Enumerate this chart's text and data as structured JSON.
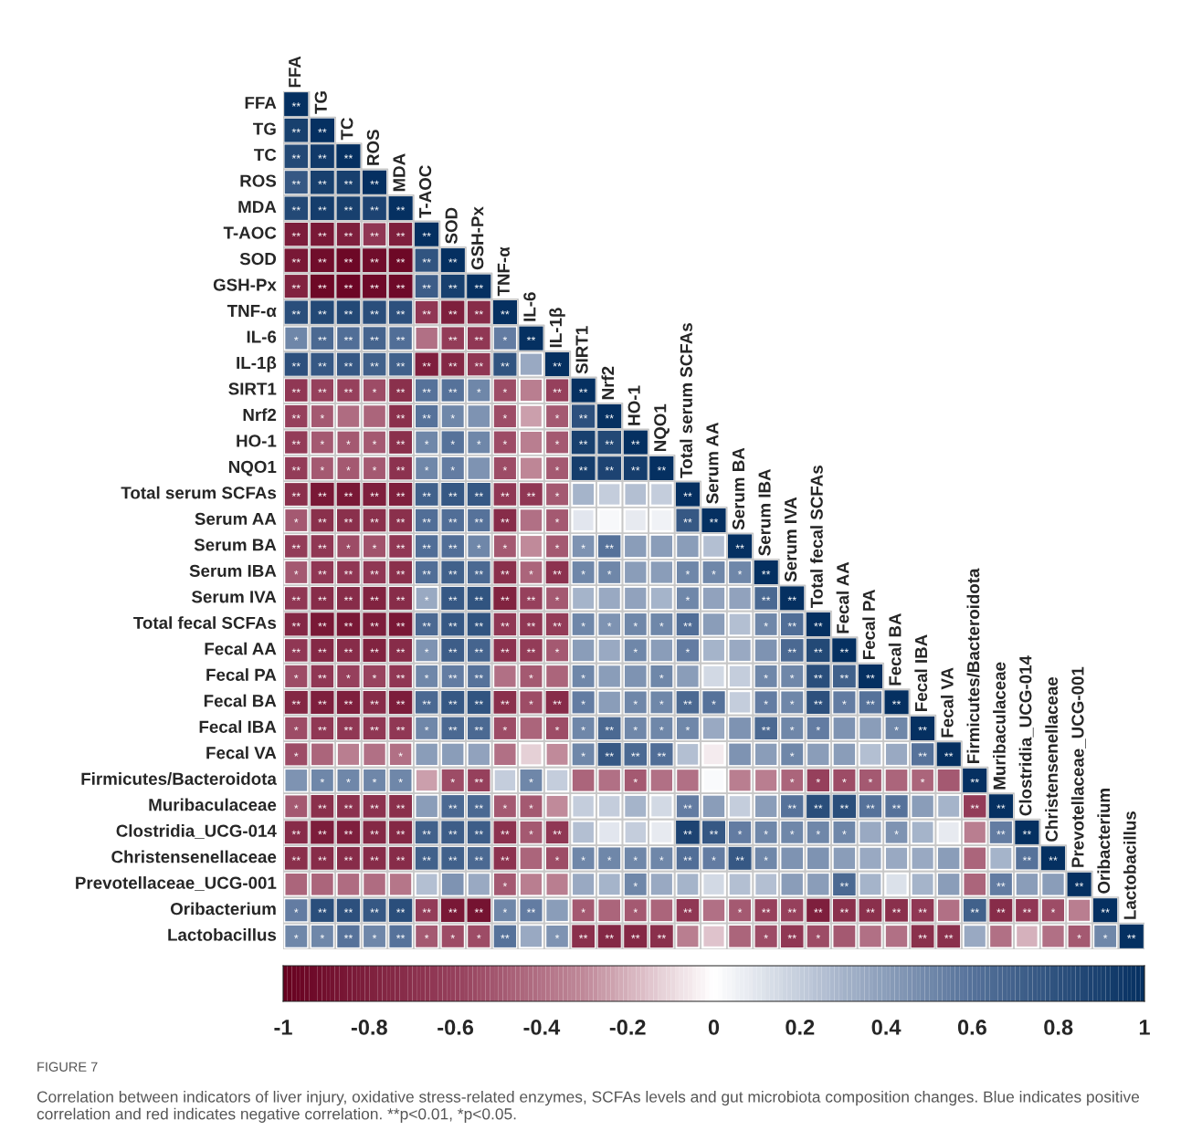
{
  "chart_data": {
    "type": "heatmap",
    "categories": [
      "FFA",
      "TG",
      "TC",
      "ROS",
      "MDA",
      "T-AOC",
      "SOD",
      "GSH-Px",
      "TNF-α",
      "IL-6",
      "IL-1β",
      "SIRT1",
      "Nrf2",
      "HO-1",
      "NQO1",
      "Total serum SCFAs",
      "Serum AA",
      "Serum BA",
      "Serum IBA",
      "Serum IVA",
      "Total fecal SCFAs",
      "Fecal AA",
      "Fecal PA",
      "Fecal BA",
      "Fecal IBA",
      "Fecal VA",
      "Firmicutes/Bacteroidota",
      "Muribaculaceae",
      "Clostridia_UCG-014",
      "Christensenellaceae",
      "Prevotellaceae_UCG-001",
      "Oribacterium",
      "Lactobacillus"
    ],
    "y_categories": [
      "FFA",
      "TG",
      "TC",
      "ROS",
      "MDA",
      "T-AOC",
      "SOD",
      "GSH-Px",
      "TNF-α",
      "IL-6",
      "IL-1β",
      "SIRT1",
      "Nrf2",
      "HO-1",
      "NQO1",
      "Total serum SCFAs",
      "Serum AA",
      "Serum BA",
      "Serum IBA",
      "Serum IVA",
      "Total fecal SCFAs",
      "Fecal AA",
      "Fecal PA",
      "Fecal BA",
      "Fecal IBA",
      "Fecal VA",
      "Firmicutes/Bacteroidota",
      "Muribaculaceae",
      "Clostridia_UCG-014",
      "Christensenellaceae",
      "Prevotellaceae_UCG-001",
      "Oribacterium",
      "Lactobacillus"
    ],
    "cells": [
      [
        1,
        null,
        null,
        null,
        null,
        null,
        null,
        null,
        null,
        null,
        null,
        null,
        null,
        null,
        null,
        null,
        null,
        null,
        null,
        null,
        null,
        null,
        null,
        null,
        null,
        null,
        null,
        null,
        null,
        null,
        null,
        null,
        null
      ],
      [
        0.9,
        1,
        null,
        null,
        null,
        null,
        null,
        null,
        null,
        null,
        null,
        null,
        null,
        null,
        null,
        null,
        null,
        null,
        null,
        null,
        null,
        null,
        null,
        null,
        null,
        null,
        null,
        null,
        null,
        null,
        null,
        null,
        null
      ],
      [
        0.85,
        0.93,
        1,
        null,
        null,
        null,
        null,
        null,
        null,
        null,
        null,
        null,
        null,
        null,
        null,
        null,
        null,
        null,
        null,
        null,
        null,
        null,
        null,
        null,
        null,
        null,
        null,
        null,
        null,
        null,
        null,
        null,
        null
      ],
      [
        0.75,
        0.9,
        0.9,
        1,
        null,
        null,
        null,
        null,
        null,
        null,
        null,
        null,
        null,
        null,
        null,
        null,
        null,
        null,
        null,
        null,
        null,
        null,
        null,
        null,
        null,
        null,
        null,
        null,
        null,
        null,
        null,
        null,
        null
      ],
      [
        0.85,
        0.92,
        0.9,
        0.88,
        1,
        null,
        null,
        null,
        null,
        null,
        null,
        null,
        null,
        null,
        null,
        null,
        null,
        null,
        null,
        null,
        null,
        null,
        null,
        null,
        null,
        null,
        null,
        null,
        null,
        null,
        null,
        null,
        null
      ],
      [
        -0.82,
        -0.85,
        -0.8,
        -0.65,
        -0.8,
        1,
        null,
        null,
        null,
        null,
        null,
        null,
        null,
        null,
        null,
        null,
        null,
        null,
        null,
        null,
        null,
        null,
        null,
        null,
        null,
        null,
        null,
        null,
        null,
        null,
        null,
        null,
        null
      ],
      [
        -0.85,
        -0.92,
        -0.95,
        -0.92,
        -0.95,
        0.78,
        1,
        null,
        null,
        null,
        null,
        null,
        null,
        null,
        null,
        null,
        null,
        null,
        null,
        null,
        null,
        null,
        null,
        null,
        null,
        null,
        null,
        null,
        null,
        null,
        null,
        null,
        null
      ],
      [
        -0.78,
        -0.95,
        -0.96,
        -0.93,
        -0.93,
        0.72,
        0.9,
        1,
        null,
        null,
        null,
        null,
        null,
        null,
        null,
        null,
        null,
        null,
        null,
        null,
        null,
        null,
        null,
        null,
        null,
        null,
        null,
        null,
        null,
        null,
        null,
        null,
        null
      ],
      [
        0.82,
        0.85,
        0.85,
        0.82,
        0.8,
        -0.65,
        -0.8,
        -0.72,
        1,
        null,
        null,
        null,
        null,
        null,
        null,
        null,
        null,
        null,
        null,
        null,
        null,
        null,
        null,
        null,
        null,
        null,
        null,
        null,
        null,
        null,
        null,
        null,
        null
      ],
      [
        0.5,
        0.65,
        0.62,
        0.68,
        0.62,
        -0.4,
        -0.62,
        -0.65,
        0.55,
        1,
        null,
        null,
        null,
        null,
        null,
        null,
        null,
        null,
        null,
        null,
        null,
        null,
        null,
        null,
        null,
        null,
        null,
        null,
        null,
        null,
        null,
        null,
        null
      ],
      [
        0.8,
        0.75,
        0.75,
        0.7,
        0.7,
        -0.8,
        -0.75,
        -0.65,
        0.78,
        0.35,
        1,
        null,
        null,
        null,
        null,
        null,
        null,
        null,
        null,
        null,
        null,
        null,
        null,
        null,
        null,
        null,
        null,
        null,
        null,
        null,
        null,
        null,
        null
      ],
      [
        -0.65,
        -0.6,
        -0.6,
        -0.55,
        -0.7,
        0.6,
        0.6,
        0.5,
        -0.55,
        -0.35,
        -0.6,
        1,
        null,
        null,
        null,
        null,
        null,
        null,
        null,
        null,
        null,
        null,
        null,
        null,
        null,
        null,
        null,
        null,
        null,
        null,
        null,
        null,
        null
      ],
      [
        -0.6,
        -0.5,
        -0.42,
        -0.45,
        -0.7,
        0.6,
        0.5,
        0.45,
        -0.55,
        -0.25,
        -0.5,
        0.8,
        1,
        null,
        null,
        null,
        null,
        null,
        null,
        null,
        null,
        null,
        null,
        null,
        null,
        null,
        null,
        null,
        null,
        null,
        null,
        null,
        null
      ],
      [
        -0.62,
        -0.5,
        -0.5,
        -0.5,
        -0.7,
        0.5,
        0.6,
        0.5,
        -0.55,
        -0.35,
        -0.5,
        0.9,
        0.85,
        1,
        null,
        null,
        null,
        null,
        null,
        null,
        null,
        null,
        null,
        null,
        null,
        null,
        null,
        null,
        null,
        null,
        null,
        null,
        null
      ],
      [
        -0.62,
        -0.5,
        -0.5,
        -0.5,
        -0.68,
        0.5,
        0.55,
        0.45,
        -0.55,
        -0.32,
        -0.5,
        0.92,
        0.88,
        0.92,
        1,
        null,
        null,
        null,
        null,
        null,
        null,
        null,
        null,
        null,
        null,
        null,
        null,
        null,
        null,
        null,
        null,
        null,
        null
      ],
      [
        -0.7,
        -0.85,
        -0.85,
        -0.8,
        -0.8,
        0.7,
        0.75,
        0.75,
        -0.65,
        -0.65,
        -0.5,
        0.3,
        0.2,
        0.25,
        0.2,
        1,
        null,
        null,
        null,
        null,
        null,
        null,
        null,
        null,
        null,
        null,
        null,
        null,
        null,
        null,
        null,
        null,
        null
      ],
      [
        -0.5,
        -0.7,
        -0.7,
        -0.7,
        -0.7,
        0.62,
        0.62,
        0.6,
        -0.72,
        -0.4,
        -0.5,
        0.1,
        0.03,
        0.08,
        0.05,
        0.75,
        1,
        null,
        null,
        null,
        null,
        null,
        null,
        null,
        null,
        null,
        null,
        null,
        null,
        null,
        null,
        null,
        null
      ],
      [
        -0.62,
        -0.65,
        -0.55,
        -0.52,
        -0.65,
        0.62,
        0.62,
        0.5,
        -0.5,
        -0.3,
        -0.5,
        0.45,
        0.6,
        0.4,
        0.4,
        0.4,
        0.25,
        1,
        null,
        null,
        null,
        null,
        null,
        null,
        null,
        null,
        null,
        null,
        null,
        null,
        null,
        null,
        null
      ],
      [
        -0.5,
        -0.65,
        -0.65,
        -0.65,
        -0.7,
        0.62,
        0.7,
        0.65,
        -0.7,
        -0.45,
        -0.68,
        0.5,
        0.5,
        0.4,
        0.4,
        0.5,
        0.5,
        0.5,
        1,
        null,
        null,
        null,
        null,
        null,
        null,
        null,
        null,
        null,
        null,
        null,
        null,
        null,
        null
      ],
      [
        -0.65,
        -0.72,
        -0.72,
        -0.78,
        -0.72,
        0.35,
        0.75,
        0.78,
        -0.78,
        -0.6,
        -0.5,
        0.3,
        0.35,
        0.38,
        0.3,
        0.5,
        0.38,
        0.38,
        0.65,
        1,
        null,
        null,
        null,
        null,
        null,
        null,
        null,
        null,
        null,
        null,
        null,
        null,
        null
      ],
      [
        -0.75,
        -0.85,
        -0.85,
        -0.82,
        -0.85,
        0.65,
        0.75,
        0.78,
        -0.65,
        -0.65,
        -0.62,
        0.5,
        0.45,
        0.5,
        0.5,
        0.62,
        0.4,
        0.25,
        0.5,
        0.62,
        1,
        null,
        null,
        null,
        null,
        null,
        null,
        null,
        null,
        null,
        null,
        null,
        null
      ],
      [
        -0.65,
        -0.75,
        -0.72,
        -0.78,
        -0.72,
        0.45,
        0.72,
        0.68,
        -0.68,
        -0.62,
        -0.5,
        0.4,
        0.35,
        0.5,
        0.4,
        0.55,
        0.3,
        0.35,
        0.45,
        0.65,
        0.85,
        1,
        null,
        null,
        null,
        null,
        null,
        null,
        null,
        null,
        null,
        null,
        null
      ],
      [
        -0.55,
        -0.65,
        -0.6,
        -0.58,
        -0.65,
        0.5,
        0.55,
        0.6,
        -0.4,
        -0.5,
        -0.45,
        0.5,
        0.4,
        0.45,
        0.5,
        0.4,
        0.15,
        0.2,
        0.5,
        0.5,
        0.82,
        0.7,
        1,
        null,
        null,
        null,
        null,
        null,
        null,
        null,
        null,
        null,
        null
      ],
      [
        -0.75,
        -0.8,
        -0.8,
        -0.72,
        -0.82,
        0.65,
        0.75,
        0.78,
        -0.7,
        -0.55,
        -0.72,
        0.55,
        0.4,
        0.5,
        0.5,
        0.65,
        0.6,
        0.2,
        0.55,
        0.5,
        0.8,
        0.55,
        0.6,
        1,
        null,
        null,
        null,
        null,
        null,
        null,
        null,
        null,
        null
      ],
      [
        -0.55,
        -0.65,
        -0.65,
        -0.65,
        -0.65,
        0.5,
        0.65,
        0.65,
        -0.55,
        -0.45,
        -0.55,
        0.5,
        0.65,
        0.5,
        0.5,
        0.5,
        0.35,
        0.45,
        0.65,
        0.5,
        0.55,
        0.45,
        0.4,
        0.5,
        1,
        null,
        null,
        null,
        null,
        null,
        null,
        null,
        null
      ],
      [
        -0.55,
        -0.45,
        -0.35,
        -0.4,
        -0.4,
        0.4,
        0.4,
        0.38,
        -0.4,
        -0.12,
        -0.3,
        0.5,
        0.75,
        0.65,
        0.62,
        0.25,
        -0.05,
        0.45,
        0.4,
        0.5,
        0.4,
        0.4,
        0.25,
        0.35,
        0.6,
        1,
        null,
        null,
        null,
        null,
        null,
        null,
        null
      ],
      [
        0.45,
        0.5,
        0.5,
        0.5,
        0.5,
        -0.25,
        -0.55,
        -0.6,
        0.2,
        0.5,
        0.2,
        -0.45,
        -0.4,
        -0.5,
        -0.4,
        -0.4,
        0.02,
        -0.35,
        -0.35,
        -0.45,
        -0.6,
        -0.55,
        -0.5,
        -0.45,
        -0.45,
        -0.5,
        1,
        null,
        null,
        null,
        null,
        null,
        null
      ],
      [
        -0.5,
        -0.7,
        -0.68,
        -0.68,
        -0.7,
        0.4,
        0.65,
        0.65,
        -0.5,
        -0.5,
        -0.3,
        0.2,
        0.2,
        0.3,
        0.15,
        0.55,
        0.4,
        0.2,
        0.4,
        0.6,
        0.82,
        0.82,
        0.6,
        0.6,
        0.4,
        0.3,
        -0.62,
        1,
        null,
        null,
        null,
        null,
        null
      ],
      [
        -0.72,
        -0.82,
        -0.8,
        -0.75,
        -0.75,
        0.7,
        0.72,
        0.72,
        -0.68,
        -0.5,
        -0.65,
        0.25,
        0.1,
        0.2,
        0.08,
        0.88,
        0.75,
        0.55,
        0.5,
        0.5,
        0.5,
        0.5,
        0.35,
        0.45,
        0.3,
        0.08,
        -0.35,
        0.55,
        1,
        null,
        null,
        null,
        null
      ],
      [
        -0.7,
        -0.72,
        -0.72,
        -0.72,
        -0.72,
        0.7,
        0.7,
        0.65,
        -0.68,
        -0.45,
        -0.55,
        0.5,
        0.5,
        0.5,
        0.5,
        0.62,
        0.55,
        0.75,
        0.5,
        0.45,
        0.45,
        0.4,
        0.35,
        0.35,
        0.35,
        0.4,
        -0.45,
        0.3,
        0.6,
        1,
        null,
        null,
        null
      ],
      [
        -0.45,
        -0.45,
        -0.42,
        -0.42,
        -0.38,
        0.25,
        0.45,
        0.35,
        -0.5,
        -0.35,
        -0.35,
        0.35,
        0.3,
        0.5,
        0.35,
        0.3,
        0.15,
        0.25,
        0.25,
        0.4,
        0.4,
        0.65,
        0.3,
        0.12,
        0.3,
        0.4,
        -0.45,
        0.55,
        0.4,
        0.4,
        1,
        null,
        null
      ],
      [
        0.55,
        0.82,
        0.8,
        0.75,
        0.82,
        -0.62,
        -0.85,
        -0.88,
        0.5,
        0.55,
        0.4,
        -0.5,
        -0.45,
        -0.5,
        -0.45,
        -0.65,
        -0.4,
        -0.5,
        -0.6,
        -0.6,
        -0.8,
        -0.7,
        -0.7,
        -0.7,
        -0.65,
        -0.4,
        0.7,
        -0.72,
        -0.65,
        -0.55,
        -0.35,
        1,
        null
      ],
      [
        0.5,
        0.5,
        0.6,
        0.5,
        0.6,
        -0.5,
        -0.55,
        -0.55,
        0.6,
        0.35,
        0.45,
        -0.7,
        -0.75,
        -0.75,
        -0.7,
        -0.35,
        -0.15,
        -0.45,
        -0.55,
        -0.65,
        -0.55,
        -0.5,
        -0.4,
        -0.4,
        -0.7,
        -0.7,
        0.35,
        -0.4,
        -0.2,
        -0.4,
        -0.5,
        0.5,
        1
      ]
    ],
    "cell_labels": [
      [
        "**",
        null,
        null,
        null,
        null,
        null,
        null,
        null,
        null,
        null,
        null,
        null,
        null,
        null,
        null,
        null,
        null,
        null,
        null,
        null,
        null,
        null,
        null,
        null,
        null,
        null,
        null,
        null,
        null,
        null,
        null,
        null,
        null
      ],
      [
        "**",
        "**",
        null,
        null,
        null,
        null,
        null,
        null,
        null,
        null,
        null,
        null,
        null,
        null,
        null,
        null,
        null,
        null,
        null,
        null,
        null,
        null,
        null,
        null,
        null,
        null,
        null,
        null,
        null,
        null,
        null,
        null,
        null
      ],
      [
        "**",
        "**",
        "**",
        null,
        null,
        null,
        null,
        null,
        null,
        null,
        null,
        null,
        null,
        null,
        null,
        null,
        null,
        null,
        null,
        null,
        null,
        null,
        null,
        null,
        null,
        null,
        null,
        null,
        null,
        null,
        null,
        null,
        null
      ],
      [
        "**",
        "**",
        "**",
        "**",
        null,
        null,
        null,
        null,
        null,
        null,
        null,
        null,
        null,
        null,
        null,
        null,
        null,
        null,
        null,
        null,
        null,
        null,
        null,
        null,
        null,
        null,
        null,
        null,
        null,
        null,
        null,
        null,
        null
      ],
      [
        "**",
        "**",
        "**",
        "**",
        "**",
        null,
        null,
        null,
        null,
        null,
        null,
        null,
        null,
        null,
        null,
        null,
        null,
        null,
        null,
        null,
        null,
        null,
        null,
        null,
        null,
        null,
        null,
        null,
        null,
        null,
        null,
        null,
        null
      ],
      [
        "**",
        "**",
        "**",
        "**",
        "**",
        "**",
        null,
        null,
        null,
        null,
        null,
        null,
        null,
        null,
        null,
        null,
        null,
        null,
        null,
        null,
        null,
        null,
        null,
        null,
        null,
        null,
        null,
        null,
        null,
        null,
        null,
        null,
        null
      ],
      [
        "**",
        "**",
        "**",
        "**",
        "**",
        "**",
        "**",
        null,
        null,
        null,
        null,
        null,
        null,
        null,
        null,
        null,
        null,
        null,
        null,
        null,
        null,
        null,
        null,
        null,
        null,
        null,
        null,
        null,
        null,
        null,
        null,
        null,
        null
      ],
      [
        "**",
        "**",
        "**",
        "**",
        "**",
        "**",
        "**",
        "**",
        null,
        null,
        null,
        null,
        null,
        null,
        null,
        null,
        null,
        null,
        null,
        null,
        null,
        null,
        null,
        null,
        null,
        null,
        null,
        null,
        null,
        null,
        null,
        null,
        null
      ],
      [
        "**",
        "**",
        "**",
        "**",
        "**",
        "**",
        "**",
        "**",
        "**",
        null,
        null,
        null,
        null,
        null,
        null,
        null,
        null,
        null,
        null,
        null,
        null,
        null,
        null,
        null,
        null,
        null,
        null,
        null,
        null,
        null,
        null,
        null,
        null
      ],
      [
        "*",
        "**",
        "**",
        "**",
        "**",
        null,
        "**",
        "**",
        "*",
        "**",
        null,
        null,
        null,
        null,
        null,
        null,
        null,
        null,
        null,
        null,
        null,
        null,
        null,
        null,
        null,
        null,
        null,
        null,
        null,
        null,
        null,
        null,
        null
      ],
      [
        "**",
        "**",
        "**",
        "**",
        "**",
        "**",
        "**",
        "**",
        "**",
        null,
        "**",
        null,
        null,
        null,
        null,
        null,
        null,
        null,
        null,
        null,
        null,
        null,
        null,
        null,
        null,
        null,
        null,
        null,
        null,
        null,
        null,
        null,
        null
      ],
      [
        "**",
        "**",
        "**",
        "*",
        "**",
        "**",
        "**",
        "*",
        "*",
        null,
        "**",
        "**",
        null,
        null,
        null,
        null,
        null,
        null,
        null,
        null,
        null,
        null,
        null,
        null,
        null,
        null,
        null,
        null,
        null,
        null,
        null,
        null,
        null
      ],
      [
        "**",
        "*",
        null,
        null,
        "**",
        "**",
        "*",
        null,
        "*",
        null,
        "*",
        "**",
        "**",
        null,
        null,
        null,
        null,
        null,
        null,
        null,
        null,
        null,
        null,
        null,
        null,
        null,
        null,
        null,
        null,
        null,
        null,
        null,
        null
      ],
      [
        "**",
        "*",
        "*",
        "*",
        "**",
        "*",
        "*",
        "*",
        "*",
        null,
        "*",
        "**",
        "**",
        "**",
        null,
        null,
        null,
        null,
        null,
        null,
        null,
        null,
        null,
        null,
        null,
        null,
        null,
        null,
        null,
        null,
        null,
        null,
        null
      ],
      [
        "**",
        "*",
        "*",
        "*",
        "**",
        "*",
        "*",
        null,
        "*",
        null,
        "*",
        "**",
        "**",
        "**",
        "**",
        null,
        null,
        null,
        null,
        null,
        null,
        null,
        null,
        null,
        null,
        null,
        null,
        null,
        null,
        null,
        null,
        null,
        null
      ],
      [
        "**",
        "**",
        "**",
        "**",
        "**",
        "**",
        "**",
        "**",
        "**",
        "**",
        "*",
        null,
        null,
        null,
        null,
        "**",
        null,
        null,
        null,
        null,
        null,
        null,
        null,
        null,
        null,
        null,
        null,
        null,
        null,
        null,
        null,
        null,
        null
      ],
      [
        "*",
        "**",
        "**",
        "**",
        "**",
        "**",
        "**",
        "**",
        "**",
        null,
        "*",
        null,
        null,
        null,
        null,
        "**",
        "**",
        null,
        null,
        null,
        null,
        null,
        null,
        null,
        null,
        null,
        null,
        null,
        null,
        null,
        null,
        null,
        null
      ],
      [
        "**",
        "**",
        "*",
        "*",
        "**",
        "**",
        "**",
        "*",
        "*",
        null,
        "*",
        "*",
        "**",
        null,
        null,
        null,
        null,
        "**",
        null,
        null,
        null,
        null,
        null,
        null,
        null,
        null,
        null,
        null,
        null,
        null,
        null,
        null,
        null
      ],
      [
        "*",
        "**",
        "**",
        "**",
        "**",
        "**",
        "**",
        "**",
        "**",
        "*",
        "**",
        "*",
        "*",
        null,
        null,
        "*",
        "*",
        "*",
        "**",
        null,
        null,
        null,
        null,
        null,
        null,
        null,
        null,
        null,
        null,
        null,
        null,
        null,
        null
      ],
      [
        "**",
        "**",
        "**",
        "**",
        "**",
        "*",
        "**",
        "**",
        "**",
        "**",
        "*",
        null,
        null,
        null,
        null,
        "*",
        null,
        null,
        "**",
        "**",
        null,
        null,
        null,
        null,
        null,
        null,
        null,
        null,
        null,
        null,
        null,
        null,
        null
      ],
      [
        "**",
        "**",
        "**",
        "**",
        "**",
        "**",
        "**",
        "**",
        "**",
        "**",
        "**",
        "*",
        "*",
        "*",
        "*",
        "**",
        null,
        null,
        "*",
        "**",
        "**",
        null,
        null,
        null,
        null,
        null,
        null,
        null,
        null,
        null,
        null,
        null,
        null
      ],
      [
        "**",
        "**",
        "**",
        "**",
        "**",
        "*",
        "**",
        "**",
        "**",
        "**",
        "*",
        null,
        null,
        "*",
        null,
        "*",
        null,
        null,
        null,
        "**",
        "**",
        "**",
        null,
        null,
        null,
        null,
        null,
        null,
        null,
        null,
        null,
        null,
        null
      ],
      [
        "*",
        "**",
        "*",
        "*",
        "**",
        "*",
        "**",
        "**",
        null,
        "*",
        null,
        "*",
        null,
        null,
        "*",
        null,
        null,
        null,
        "*",
        "*",
        "**",
        "**",
        "**",
        null,
        null,
        null,
        null,
        null,
        null,
        null,
        null,
        null,
        null
      ],
      [
        "**",
        "**",
        "**",
        "**",
        "**",
        "**",
        "**",
        "**",
        "**",
        "*",
        "**",
        "*",
        null,
        "*",
        "*",
        "**",
        "*",
        null,
        "*",
        "*",
        "**",
        "*",
        "**",
        "**",
        null,
        null,
        null,
        null,
        null,
        null,
        null,
        null,
        null
      ],
      [
        "*",
        "**",
        "**",
        "**",
        "**",
        "*",
        "**",
        "**",
        "*",
        null,
        "*",
        "*",
        "**",
        "*",
        "*",
        "*",
        null,
        null,
        "**",
        "*",
        "*",
        null,
        null,
        "*",
        "**",
        null,
        null,
        null,
        null,
        null,
        null,
        null,
        null
      ],
      [
        "*",
        null,
        null,
        null,
        "*",
        null,
        null,
        null,
        null,
        null,
        null,
        "*",
        "**",
        "**",
        "**",
        null,
        null,
        null,
        null,
        "*",
        null,
        null,
        null,
        null,
        "**",
        "**",
        null,
        null,
        null,
        null,
        null,
        null,
        null
      ],
      [
        null,
        "*",
        "*",
        "*",
        "*",
        null,
        "*",
        "**",
        null,
        "*",
        null,
        null,
        null,
        "*",
        null,
        null,
        null,
        null,
        null,
        "*",
        "*",
        "*",
        "*",
        null,
        "*",
        null,
        "**",
        null,
        null,
        null,
        null,
        null,
        null
      ],
      [
        "*",
        "**",
        "**",
        "**",
        "**",
        null,
        "**",
        "**",
        "*",
        "*",
        null,
        null,
        null,
        null,
        null,
        "**",
        null,
        null,
        null,
        "**",
        "**",
        "**",
        "**",
        "**",
        null,
        null,
        "**",
        "**",
        null,
        null,
        null,
        null,
        null
      ],
      [
        "**",
        "**",
        "**",
        "**",
        "**",
        "**",
        "**",
        "**",
        "**",
        "*",
        "**",
        null,
        null,
        null,
        null,
        "**",
        "**",
        "*",
        "*",
        "*",
        "*",
        "*",
        null,
        "*",
        null,
        null,
        null,
        "**",
        "**",
        null,
        null,
        null,
        null
      ],
      [
        "**",
        "**",
        "**",
        "**",
        "**",
        "**",
        "**",
        "**",
        "**",
        null,
        "*",
        "*",
        "*",
        "*",
        "*",
        "**",
        "*",
        "**",
        "*",
        null,
        null,
        null,
        null,
        null,
        null,
        null,
        null,
        null,
        "**",
        "**",
        null,
        null,
        null
      ],
      [
        null,
        null,
        null,
        null,
        null,
        null,
        null,
        null,
        "*",
        null,
        null,
        null,
        null,
        "*",
        null,
        null,
        null,
        null,
        null,
        null,
        null,
        "**",
        null,
        null,
        null,
        null,
        null,
        "**",
        null,
        null,
        "**",
        null,
        null
      ],
      [
        "*",
        "**",
        "**",
        "**",
        "**",
        "**",
        "**",
        "**",
        "*",
        "**",
        null,
        "*",
        null,
        "*",
        null,
        "**",
        null,
        "*",
        "**",
        "**",
        "**",
        "**",
        "**",
        "**",
        "**",
        null,
        "**",
        "**",
        "**",
        "*",
        null,
        "**",
        null
      ],
      [
        "*",
        "*",
        "**",
        "*",
        "**",
        "*",
        "*",
        "*",
        "**",
        null,
        "*",
        "**",
        "**",
        "**",
        "**",
        null,
        null,
        null,
        "*",
        "**",
        "*",
        null,
        null,
        null,
        "**",
        "**",
        null,
        null,
        null,
        null,
        "*",
        "*",
        "**"
      ]
    ],
    "clim": [
      -1,
      1
    ],
    "cticks": [
      -1,
      -0.8,
      -0.6,
      -0.4,
      -0.2,
      0,
      0.2,
      0.4,
      0.6,
      0.8,
      1
    ],
    "annotations": [
      "FIGURE 7",
      "Correlation between indicators of liver injury, oxidative stress-related enzymes, SCFAs levels and gut microbiota composition changes. Blue indicates positive correlation and red indicates negative correlation. **p<0.01, *p<0.05."
    ]
  }
}
